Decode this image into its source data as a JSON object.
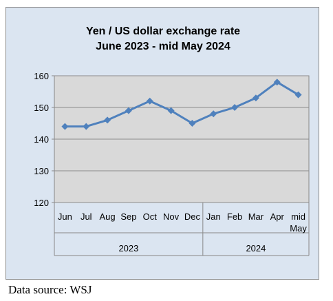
{
  "chart_data": {
    "type": "line",
    "title_lines": [
      "Yen / US dollar exchange rate",
      "June 2023 - mid May 2024"
    ],
    "categories": [
      "Jun",
      "Jul",
      "Aug",
      "Sep",
      "Oct",
      "Nov",
      "Dec",
      "Jan",
      "Feb",
      "Mar",
      "Apr",
      "mid May"
    ],
    "category_label_lines": [
      [
        "Jun"
      ],
      [
        "Jul"
      ],
      [
        "Aug"
      ],
      [
        "Sep"
      ],
      [
        "Oct"
      ],
      [
        "Nov"
      ],
      [
        "Dec"
      ],
      [
        "Jan"
      ],
      [
        "Feb"
      ],
      [
        "Mar"
      ],
      [
        "Apr"
      ],
      [
        "mid",
        "May"
      ]
    ],
    "year_groups": [
      {
        "label": "2023",
        "span": 7
      },
      {
        "label": "2024",
        "span": 5
      }
    ],
    "series": [
      {
        "values": [
          144,
          144,
          146,
          149,
          152,
          149,
          145,
          148,
          150,
          153,
          158,
          154
        ],
        "color": "#4f81bd"
      }
    ],
    "ylim": [
      120,
      160
    ],
    "yticks": [
      "120",
      "130",
      "140",
      "150",
      "160"
    ],
    "grid": true,
    "legend": "none",
    "plot_background": "#d9d9d9",
    "frame_background": "#dbe5f1"
  },
  "source_note": "Data source: WSJ"
}
